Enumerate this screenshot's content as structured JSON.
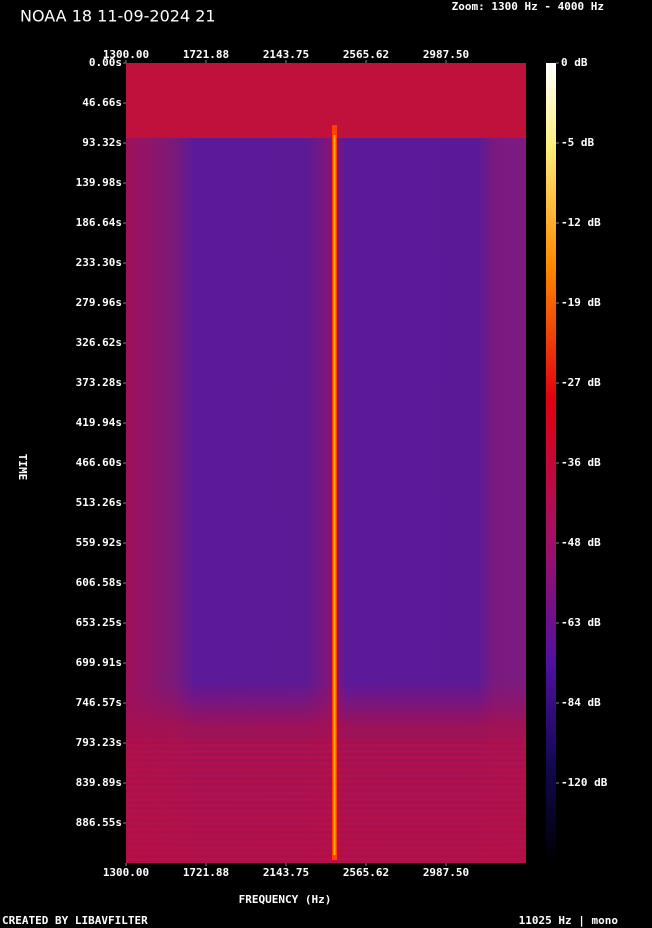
{
  "chart_data": {
    "type": "spectrogram",
    "title": "NOAA 18 11-09-2024 21",
    "zoom_label": "Zoom: 1300 Hz - 4000 Hz",
    "xlabel": "FREQUENCY (Hz)",
    "ylabel": "TIME",
    "footer_left": "CREATED BY LIBAVFILTER",
    "footer_right": "11025 Hz | mono",
    "xlim": [
      1300,
      3409.375
    ],
    "xticks": [
      {
        "value": 1300,
        "label": "1300.00"
      },
      1721.88,
      2143.75,
      2565.62,
      {
        "value": 2987.5,
        "label": "2987.50"
      }
    ],
    "ylim": [
      0,
      933.2
    ],
    "yticks": [
      {
        "value": 0,
        "label": "0.00s"
      },
      {
        "value": 46.66,
        "label": "46.66s"
      },
      {
        "value": 93.32,
        "label": "93.32s"
      },
      {
        "value": 139.98,
        "label": "139.98s"
      },
      {
        "value": 186.64,
        "label": "186.64s"
      },
      {
        "value": 233.3,
        "label": "233.30s"
      },
      {
        "value": 279.96,
        "label": "279.96s"
      },
      {
        "value": 326.62,
        "label": "326.62s"
      },
      {
        "value": 373.28,
        "label": "373.28s"
      },
      {
        "value": 419.94,
        "label": "419.94s"
      },
      {
        "value": 466.6,
        "label": "466.60s"
      },
      {
        "value": 513.26,
        "label": "513.26s"
      },
      {
        "value": 559.92,
        "label": "559.92s"
      },
      {
        "value": 606.58,
        "label": "606.58s"
      },
      {
        "value": 653.25,
        "label": "653.25s"
      },
      {
        "value": 699.91,
        "label": "699.91s"
      },
      {
        "value": 746.57,
        "label": "746.57s"
      },
      {
        "value": 793.23,
        "label": "793.23s"
      },
      {
        "value": 839.89,
        "label": "839.89s"
      },
      {
        "value": 886.55,
        "label": "886.55s"
      }
    ],
    "colorbar_ticks": [
      {
        "value": 0,
        "label": "0 dB"
      },
      {
        "value": -5,
        "label": "-5 dB"
      },
      {
        "value": -12,
        "label": "-12 dB"
      },
      {
        "value": -19,
        "label": "-19 dB"
      },
      {
        "value": -27,
        "label": "-27 dB"
      },
      {
        "value": -36,
        "label": "-36 dB"
      },
      {
        "value": -48,
        "label": "-48 dB"
      },
      {
        "value": -63,
        "label": "-63 dB"
      },
      {
        "value": -84,
        "label": "-84 dB"
      },
      {
        "value": -120,
        "label": "-120 dB"
      }
    ]
  }
}
